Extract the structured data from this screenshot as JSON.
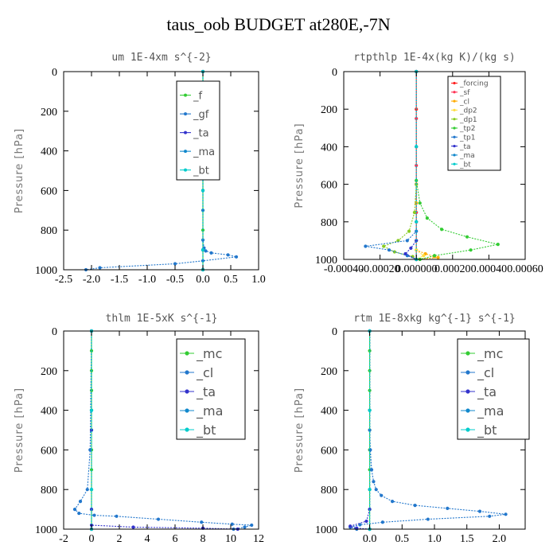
{
  "figure_title": "taus_oob  BUDGET at280E,-7N",
  "colors": {
    "forcing": "#ff2222",
    "sf": "#ff3355",
    "cl": "#ffaa00",
    "dp2": "#ffdd44",
    "dp1": "#88cc22",
    "tp2": "#33cc33",
    "tp1": "#2277cc",
    "ta": "#3333cc",
    "ma": "#1188cc",
    "bt": "#00cccc",
    "mc": "#33cc33",
    "f": "#33cc33",
    "gf": "#2277cc",
    "cl_blue": "#2277cc"
  },
  "chart_data": [
    {
      "type": "line",
      "title": "um  1E-4xm s^{-2}",
      "ylabel": "Pressure [hPa]",
      "xlim": [
        -2.5,
        1.0
      ],
      "ylim": [
        1000,
        0
      ],
      "xticks": [
        "-2.5",
        "-2.0",
        "-1.5",
        "-1.0",
        "-0.5",
        "0.0",
        "0.5",
        "1.0"
      ],
      "xtick_values": [
        -2.5,
        -2.0,
        -1.5,
        -1.0,
        -0.5,
        0.0,
        0.5,
        1.0
      ],
      "yticks": [
        "0",
        "200",
        "400",
        "600",
        "800",
        "1000"
      ],
      "ytick_values": [
        0,
        200,
        400,
        600,
        800,
        1000
      ],
      "legend_position": "top-right",
      "series": [
        {
          "name": "_f",
          "color": "#33cc33",
          "x": [
            0,
            0,
            0,
            0,
            0,
            0,
            0,
            0,
            0,
            0,
            0
          ],
          "y": [
            0,
            100,
            200,
            300,
            400,
            500,
            600,
            700,
            800,
            900,
            1000
          ]
        },
        {
          "name": "_gf",
          "color": "#2277cc",
          "x": [
            0.0,
            0.0,
            0.0,
            0.02,
            0.05,
            0.15,
            0.45,
            0.6,
            0.0,
            -0.5,
            -1.85,
            -2.1
          ],
          "y": [
            0,
            700,
            850,
            890,
            905,
            915,
            925,
            935,
            955,
            970,
            990,
            1000
          ]
        },
        {
          "name": "_ta",
          "color": "#3333cc",
          "x": [
            0,
            0,
            0,
            0,
            0
          ],
          "y": [
            0,
            300,
            600,
            900,
            1000
          ]
        },
        {
          "name": "_ma",
          "color": "#1188cc",
          "x": [
            0,
            0,
            0,
            0,
            0
          ],
          "y": [
            0,
            300,
            600,
            900,
            1000
          ]
        },
        {
          "name": "_bt",
          "color": "#00cccc",
          "x": [
            0,
            0,
            0,
            0,
            0
          ],
          "y": [
            0,
            300,
            600,
            900,
            1000
          ]
        }
      ]
    },
    {
      "type": "line",
      "title": "rtpthlp  1E-4x(kg K)/(kg s)",
      "ylabel": "Pressure [hPa]",
      "xlim": [
        -0.0004,
        0.0006
      ],
      "ylim": [
        1000,
        0
      ],
      "xticks": [
        "-0.00040",
        "-0.00020",
        "0.000000",
        "0.00020",
        "0.00040",
        "0.00060"
      ],
      "xtick_values": [
        -0.0004,
        -0.0002,
        0.0,
        0.0002,
        0.0004,
        0.0006
      ],
      "yticks": [
        "0",
        "200",
        "400",
        "600",
        "800",
        "1000"
      ],
      "ytick_values": [
        0,
        200,
        400,
        600,
        800,
        1000
      ],
      "legend_position": "top-right",
      "series": [
        {
          "name": "_forcing",
          "color": "#ff2222",
          "x": [
            0,
            0,
            0,
            0,
            0,
            0
          ],
          "y": [
            0,
            200,
            400,
            600,
            800,
            1000
          ]
        },
        {
          "name": "_sf",
          "color": "#ff3355",
          "x": [
            0,
            0,
            0,
            0,
            0
          ],
          "y": [
            0,
            250,
            500,
            750,
            1000
          ]
        },
        {
          "name": "_cl",
          "color": "#ffaa00",
          "x": [
            0,
            0,
            0,
            0,
            5e-05,
            0.0001,
            0.00012,
            0.0
          ],
          "y": [
            0,
            700,
            900,
            950,
            970,
            985,
            990,
            1000
          ]
        },
        {
          "name": "_dp2",
          "color": "#ffdd44",
          "x": [
            0,
            0,
            0,
            4e-05,
            0.0
          ],
          "y": [
            0,
            800,
            950,
            980,
            1000
          ]
        },
        {
          "name": "_dp1",
          "color": "#88cc22",
          "x": [
            0,
            -1e-05,
            -4e-05,
            -0.0001,
            -0.00018,
            -0.00012,
            -2e-05,
            0
          ],
          "y": [
            600,
            750,
            850,
            900,
            930,
            960,
            985,
            1000
          ]
        },
        {
          "name": "_tp2",
          "color": "#33cc33",
          "x": [
            0,
            2e-05,
            6e-05,
            0.00014,
            0.00028,
            0.00045,
            0.0003,
            0.0001,
            2e-05
          ],
          "y": [
            580,
            700,
            780,
            840,
            880,
            920,
            950,
            980,
            1000
          ]
        },
        {
          "name": "_tp1",
          "color": "#2277cc",
          "x": [
            0,
            0,
            -5e-05,
            -0.00028,
            -0.00015,
            -5e-05,
            0
          ],
          "y": [
            0,
            850,
            900,
            930,
            950,
            980,
            1000
          ]
        },
        {
          "name": "_ta",
          "color": "#3333cc",
          "x": [
            0,
            0,
            -3e-05,
            -6e-05,
            0
          ],
          "y": [
            0,
            900,
            940,
            970,
            1000
          ]
        },
        {
          "name": "_ma",
          "color": "#1188cc",
          "x": [
            0,
            0,
            0,
            0
          ],
          "y": [
            0,
            400,
            800,
            1000
          ]
        },
        {
          "name": "_bt",
          "color": "#00cccc",
          "x": [
            0,
            0,
            0,
            0
          ],
          "y": [
            0,
            400,
            800,
            1000
          ]
        }
      ]
    },
    {
      "type": "line",
      "title": "thlm  1E-5xK s^{-1}",
      "ylabel": "Pressure [hPa]",
      "xlim": [
        -2,
        12
      ],
      "ylim": [
        1000,
        0
      ],
      "xticks": [
        "-2",
        "0",
        "2",
        "4",
        "6",
        "8",
        "10",
        "12"
      ],
      "xtick_values": [
        -2,
        0,
        2,
        4,
        6,
        8,
        10,
        12
      ],
      "yticks": [
        "0",
        "200",
        "400",
        "600",
        "800",
        "1000"
      ],
      "ytick_values": [
        0,
        200,
        400,
        600,
        800,
        1000
      ],
      "legend_position": "top-right",
      "series": [
        {
          "name": "_mc",
          "color": "#33cc33",
          "x": [
            0,
            0,
            0,
            0,
            0,
            0,
            0,
            0,
            0,
            0,
            0
          ],
          "y": [
            0,
            100,
            200,
            300,
            400,
            500,
            600,
            700,
            800,
            900,
            1000
          ]
        },
        {
          "name": "_cl",
          "color": "#2277cc",
          "x": [
            0,
            -0.1,
            -0.3,
            -0.8,
            -1.2,
            -0.9,
            0.2,
            1.8,
            4.8,
            7.9,
            10.1,
            11.5,
            11.0,
            10.2
          ],
          "y": [
            0,
            600,
            800,
            860,
            900,
            920,
            930,
            935,
            950,
            965,
            975,
            980,
            990,
            1000
          ]
        },
        {
          "name": "_ta",
          "color": "#3333cc",
          "x": [
            0,
            0,
            0,
            0,
            3,
            8,
            10.5,
            0
          ],
          "y": [
            0,
            500,
            900,
            980,
            990,
            995,
            1000,
            1000
          ]
        },
        {
          "name": "_ma",
          "color": "#1188cc",
          "x": [
            0,
            0,
            0,
            0
          ],
          "y": [
            0,
            400,
            800,
            1000
          ]
        },
        {
          "name": "_bt",
          "color": "#00cccc",
          "x": [
            0,
            0,
            0,
            0
          ],
          "y": [
            0,
            400,
            800,
            1000
          ]
        }
      ]
    },
    {
      "type": "line",
      "title": "rtm  1E-8xkg kg^{-1} s^{-1}",
      "ylabel": "Pressure [hPa]",
      "xlim": [
        -0.4,
        2.4
      ],
      "ylim": [
        1000,
        0
      ],
      "xticks": [
        "0.0",
        "0.5",
        "1.0",
        "1.5",
        "2.0"
      ],
      "xtick_values": [
        0.0,
        0.5,
        1.0,
        1.5,
        2.0
      ],
      "yticks": [
        "0",
        "200",
        "400",
        "600",
        "800",
        "1000"
      ],
      "ytick_values": [
        0,
        200,
        400,
        600,
        800,
        1000
      ],
      "legend_position": "top-right",
      "series": [
        {
          "name": "_mc",
          "color": "#33cc33",
          "x": [
            0,
            0,
            0,
            0,
            0,
            0,
            0,
            0,
            0,
            0,
            0
          ],
          "y": [
            0,
            100,
            200,
            300,
            400,
            500,
            600,
            700,
            800,
            900,
            1000
          ]
        },
        {
          "name": "_cl",
          "color": "#2277cc",
          "x": [
            0,
            0,
            0.01,
            0.03,
            0.06,
            0.1,
            0.18,
            0.35,
            0.7,
            1.2,
            1.7,
            2.1,
            1.85,
            0.9,
            0.2,
            -0.15,
            -0.3,
            -0.2
          ],
          "y": [
            0,
            500,
            600,
            700,
            760,
            800,
            830,
            860,
            880,
            895,
            910,
            925,
            935,
            950,
            965,
            978,
            990,
            1000
          ]
        },
        {
          "name": "_ta",
          "color": "#3333cc",
          "x": [
            0,
            0,
            -0.05,
            -0.3,
            -0.2,
            0
          ],
          "y": [
            0,
            900,
            960,
            985,
            995,
            1000
          ]
        },
        {
          "name": "_ma",
          "color": "#1188cc",
          "x": [
            0,
            0,
            0,
            0
          ],
          "y": [
            0,
            400,
            800,
            1000
          ]
        },
        {
          "name": "_bt",
          "color": "#00cccc",
          "x": [
            0,
            0,
            0,
            0
          ],
          "y": [
            0,
            400,
            800,
            1000
          ]
        }
      ]
    }
  ]
}
